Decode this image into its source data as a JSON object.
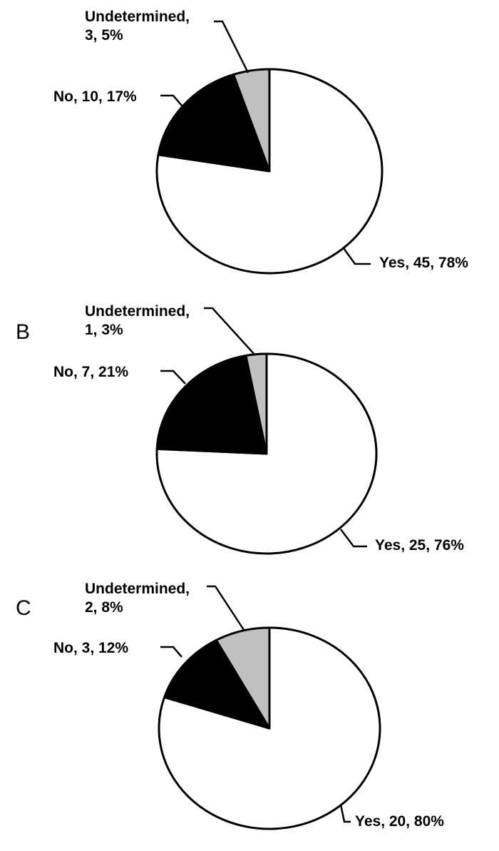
{
  "chart_data": [
    {
      "type": "pie",
      "panel": "",
      "categories": [
        "Yes",
        "No",
        "Undetermined"
      ],
      "values": [
        45,
        10,
        3
      ],
      "percents": [
        78,
        17,
        5
      ],
      "colors": [
        "#ffffff",
        "#000000",
        "#c0c0c0"
      ],
      "labels": [
        {
          "lines": [
            "Yes, 45, 78%"
          ]
        },
        {
          "lines": [
            "No, 10, 17%"
          ]
        },
        {
          "lines": [
            "Undetermined,",
            "3, 5%"
          ]
        }
      ]
    },
    {
      "type": "pie",
      "panel": "B",
      "categories": [
        "Yes",
        "No",
        "Undetermined"
      ],
      "values": [
        25,
        7,
        1
      ],
      "percents": [
        76,
        21,
        3
      ],
      "colors": [
        "#ffffff",
        "#000000",
        "#c0c0c0"
      ],
      "labels": [
        {
          "lines": [
            "Yes, 25, 76%"
          ]
        },
        {
          "lines": [
            "No, 7, 21%"
          ]
        },
        {
          "lines": [
            "Undetermined,",
            "1, 3%"
          ]
        }
      ]
    },
    {
      "type": "pie",
      "panel": "C",
      "categories": [
        "Yes",
        "No",
        "Undetermined"
      ],
      "values": [
        20,
        3,
        2
      ],
      "percents": [
        80,
        12,
        8
      ],
      "colors": [
        "#ffffff",
        "#000000",
        "#c0c0c0"
      ],
      "labels": [
        {
          "lines": [
            "Yes, 20, 80%"
          ]
        },
        {
          "lines": [
            "No, 3, 12%"
          ]
        },
        {
          "lines": [
            "Undetermined,",
            "2, 8%"
          ]
        }
      ]
    }
  ]
}
